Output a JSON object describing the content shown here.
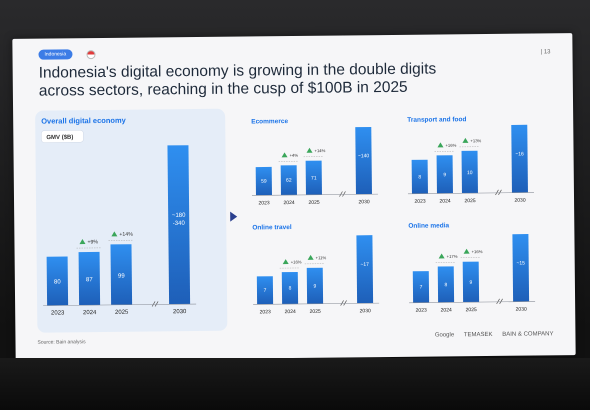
{
  "slide": {
    "tag": "Indonesia",
    "page_number": "| 13",
    "title_line1": "Indonesia's digital economy is growing in the double digits",
    "title_line2": "across sectors, reaching in the cusp of $100B in 2025",
    "source": "Source: Bain analysis",
    "logos": [
      "Google",
      "TEMASEK",
      "BAIN & COMPANY"
    ]
  },
  "chart_data": [
    {
      "type": "bar",
      "title": "Overall digital economy",
      "subtitle": "GMV ($B)",
      "categories": [
        "2023",
        "2024",
        "2025",
        "2030"
      ],
      "values": [
        80,
        87,
        99,
        260
      ],
      "value_labels": [
        "80",
        "87",
        "99",
        "~180\n-340"
      ],
      "growth_labels": [
        "",
        "+9%",
        "+14%",
        ""
      ],
      "ylim": [
        0,
        270
      ]
    },
    {
      "type": "bar",
      "title": "Ecommerce",
      "categories": [
        "2023",
        "2024",
        "2025",
        "2030"
      ],
      "values": [
        59,
        62,
        71,
        140
      ],
      "value_labels": [
        "59",
        "62",
        "71",
        "~140"
      ],
      "growth_labels": [
        "",
        "+4%",
        "+14%",
        ""
      ],
      "ylim": [
        0,
        150
      ]
    },
    {
      "type": "bar",
      "title": "Transport and food",
      "categories": [
        "2023",
        "2024",
        "2025",
        "2030"
      ],
      "values": [
        8,
        9,
        10,
        16
      ],
      "value_labels": [
        "8",
        "9",
        "10",
        "~16"
      ],
      "growth_labels": [
        "",
        "+16%",
        "+13%",
        ""
      ],
      "ylim": [
        0,
        17
      ]
    },
    {
      "type": "bar",
      "title": "Online travel",
      "categories": [
        "2023",
        "2024",
        "2025",
        "2030"
      ],
      "values": [
        7,
        8,
        9,
        17
      ],
      "value_labels": [
        "7",
        "8",
        "9",
        "~17"
      ],
      "growth_labels": [
        "",
        "+16%",
        "+11%",
        ""
      ],
      "ylim": [
        0,
        18
      ]
    },
    {
      "type": "bar",
      "title": "Online media",
      "categories": [
        "2023",
        "2024",
        "2025",
        "2030"
      ],
      "values": [
        7,
        8,
        9,
        15
      ],
      "value_labels": [
        "7",
        "8",
        "9",
        "~15"
      ],
      "growth_labels": [
        "",
        "+17%",
        "+16%",
        ""
      ],
      "ylim": [
        0,
        16
      ]
    }
  ],
  "colors": {
    "bar_top": "#2f8ff0",
    "bar_bottom": "#1e5fb8",
    "accent": "#1a73e8",
    "growth_icon": "#3aa65a"
  }
}
